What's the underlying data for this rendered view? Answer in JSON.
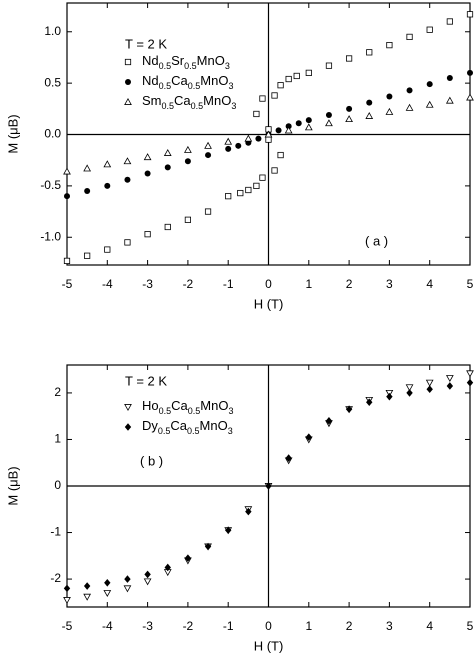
{
  "chart_data": [
    {
      "type": "scatter",
      "annotation": "T = 2 K",
      "panel_label": "( a )",
      "x_label": "H (T)",
      "y_label": "M (μB)",
      "xlim": [
        -5,
        5
      ],
      "ylim": [
        -1.27,
        1.28
      ],
      "xticks": [
        -5,
        -4,
        -3,
        -2,
        -1,
        0,
        1,
        2,
        3,
        4,
        5
      ],
      "yticks": [
        {
          "value": -1.0,
          "label": "-1.0"
        },
        -0.5,
        {
          "value": 0.0,
          "label": "0.0"
        },
        0.5,
        {
          "value": 1.0,
          "label": "1.0"
        }
      ],
      "legend": "upper left",
      "series": [
        {
          "name": "Nd0.5Sr0.5MnO3",
          "marker": "square-open",
          "color": "#000000",
          "x": [
            -5,
            -4.5,
            -4,
            -3.5,
            -3,
            -2.5,
            -2,
            -1.5,
            -1,
            -0.7,
            -0.5,
            -0.3,
            -0.15,
            0,
            0.15,
            0.3,
            0.5,
            0.7,
            1,
            1.5,
            2,
            2.5,
            3,
            3.5,
            4,
            4.5,
            5,
            0.3,
            0.15,
            0,
            -0.15,
            -0.3
          ],
          "values": [
            -1.23,
            -1.18,
            -1.12,
            -1.05,
            -0.97,
            -0.9,
            -0.83,
            -0.75,
            -0.6,
            -0.57,
            -0.54,
            -0.5,
            -0.42,
            -0.05,
            0.38,
            0.48,
            0.54,
            0.57,
            0.6,
            0.67,
            0.74,
            0.8,
            0.87,
            0.95,
            1.02,
            1.1,
            1.17,
            -0.2,
            -0.35,
            0.05,
            0.35,
            0.2
          ]
        },
        {
          "name": "Nd0.5Ca0.5MnO3",
          "marker": "circle-filled",
          "color": "#000000",
          "x": [
            -5,
            -4.5,
            -4,
            -3.5,
            -3,
            -2.5,
            -2,
            -1.5,
            -1,
            -0.75,
            -0.5,
            -0.25,
            0,
            0.25,
            0.5,
            0.75,
            1,
            1.5,
            2,
            2.5,
            3,
            3.5,
            4,
            4.5,
            5
          ],
          "values": [
            -0.6,
            -0.55,
            -0.5,
            -0.44,
            -0.38,
            -0.32,
            -0.26,
            -0.2,
            -0.14,
            -0.11,
            -0.08,
            -0.04,
            0.0,
            0.04,
            0.08,
            0.11,
            0.14,
            0.19,
            0.25,
            0.31,
            0.37,
            0.43,
            0.49,
            0.55,
            0.6
          ]
        },
        {
          "name": "Sm0.5Ca0.5MnO3",
          "marker": "triangle-open",
          "color": "#000000",
          "x": [
            -5,
            -4.5,
            -4,
            -3.5,
            -3,
            -2.5,
            -2,
            -1.5,
            -1,
            -0.5,
            0,
            0.5,
            1,
            1.5,
            2,
            2.5,
            3,
            3.5,
            4,
            4.5,
            5
          ],
          "values": [
            -0.36,
            -0.33,
            -0.29,
            -0.26,
            -0.22,
            -0.18,
            -0.15,
            -0.11,
            -0.07,
            -0.04,
            0.0,
            0.04,
            0.07,
            0.11,
            0.15,
            0.18,
            0.22,
            0.26,
            0.29,
            0.33,
            0.36
          ]
        }
      ]
    },
    {
      "type": "scatter",
      "annotation": "T = 2 K",
      "panel_label": "( b )",
      "x_label": "H (T)",
      "y_label": "M (μB)",
      "xlim": [
        -5,
        5
      ],
      "ylim": [
        -2.6,
        2.6
      ],
      "xticks": [
        -5,
        -4,
        -3,
        -2,
        -1,
        0,
        1,
        2,
        3,
        4,
        5
      ],
      "yticks": [
        -2,
        -1,
        0,
        1,
        2
      ],
      "legend": "upper left",
      "series": [
        {
          "name": "Ho0.5Ca0.5MnO3",
          "marker": "triangle-down-open",
          "color": "#000000",
          "x": [
            -5,
            -4.5,
            -4,
            -3.5,
            -3,
            -2.5,
            -2,
            -1.5,
            -1,
            -0.5,
            0,
            0.5,
            1,
            1.5,
            2,
            2.5,
            3,
            3.5,
            4,
            4.5,
            5
          ],
          "values": [
            -2.45,
            -2.38,
            -2.3,
            -2.2,
            -2.05,
            -1.85,
            -1.6,
            -1.3,
            -0.95,
            -0.5,
            0.0,
            0.55,
            1.0,
            1.35,
            1.65,
            1.85,
            2.0,
            2.12,
            2.22,
            2.32,
            2.42
          ]
        },
        {
          "name": "Dy0.5Ca0.5MnO3",
          "marker": "diamond-filled",
          "color": "#000000",
          "x": [
            -5,
            -4.5,
            -4,
            -3.5,
            -3,
            -2.5,
            -2,
            -1.5,
            -1,
            -0.5,
            0,
            0.5,
            1,
            1.5,
            2,
            2.5,
            3,
            3.5,
            4,
            4.5,
            5
          ],
          "values": [
            -2.2,
            -2.15,
            -2.08,
            -2.0,
            -1.9,
            -1.75,
            -1.55,
            -1.3,
            -0.95,
            -0.55,
            0.0,
            0.6,
            1.05,
            1.4,
            1.65,
            1.8,
            1.92,
            2.0,
            2.08,
            2.15,
            2.22
          ]
        }
      ]
    }
  ]
}
